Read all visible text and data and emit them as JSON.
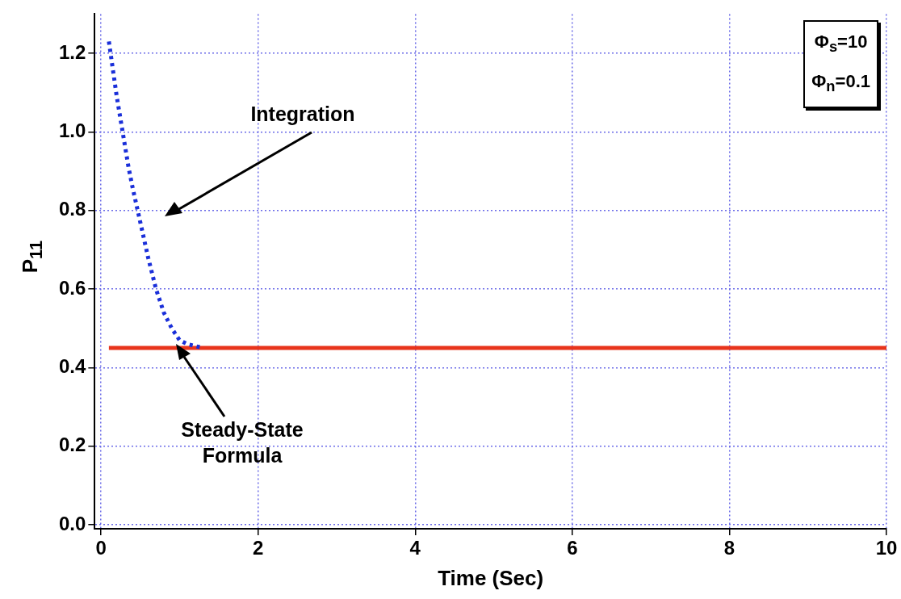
{
  "chart_data": {
    "type": "line",
    "xlabel": "Time (Sec)",
    "ylabel": "P$_{11}$",
    "xlim": [
      -0.08,
      10
    ],
    "ylim": [
      -0.01,
      1.3
    ],
    "xticks": [
      0,
      2,
      4,
      6,
      8,
      10
    ],
    "yticks": [
      {
        "value": 0,
        "label": "0.0"
      },
      0.2,
      0.4,
      0.6,
      0.8,
      {
        "value": 1,
        "label": "1.0"
      },
      1.2
    ],
    "grid": true,
    "legend": false,
    "marker": "none",
    "series": [
      {
        "color": "#1a2fd9",
        "line_style": "dotted",
        "x": [
          0.1,
          0.15,
          0.2,
          0.25,
          0.3,
          0.35,
          0.4,
          0.5,
          0.6,
          0.7,
          0.8,
          0.9,
          1.0,
          1.1,
          1.2,
          1.3
        ],
        "values": [
          1.23,
          1.16,
          1.09,
          1.03,
          0.97,
          0.91,
          0.86,
          0.77,
          0.68,
          0.6,
          0.54,
          0.5,
          0.47,
          0.46,
          0.455,
          0.45
        ]
      },
      {
        "color": "#e8341c",
        "line_style": "solid",
        "x": [
          0.1,
          10
        ],
        "values": [
          0.45,
          0.45
        ]
      }
    ],
    "annotations": [
      "Integration",
      "Steady-State Formula",
      "Φ$_{s}$=10",
      "Φ$_{n}$=0.1"
    ]
  }
}
